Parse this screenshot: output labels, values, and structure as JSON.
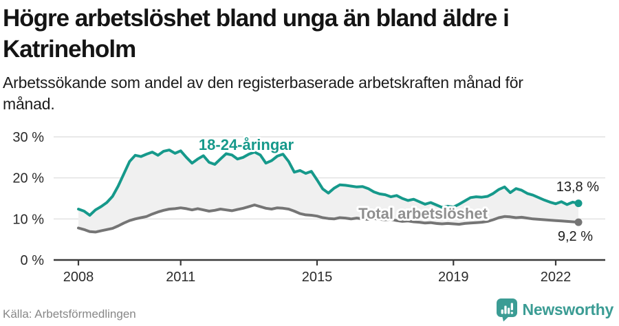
{
  "header": {
    "title": "Högre arbetslöshet bland unga än bland äldre i Katrineholm",
    "title_lines": [
      "Högre arbetslöshet bland unga än bland äldre i",
      "Katrineholm"
    ],
    "subtitle": "Arbetssökande som andel av den registerbaserade arbetskraften månad för månad.",
    "subtitle_lines": [
      "Arbetssökande som andel av den registerbaserade arbetskraften månad för",
      "månad."
    ]
  },
  "footer": {
    "source": "Källa: Arbetsförmedlingen",
    "brand": "Newsworthy",
    "brand_color": "#3b9c94",
    "brand_icon": "bar-chart-speech-bubble-icon"
  },
  "chart_data": {
    "type": "line",
    "title": "Högre arbetslöshet bland unga än bland äldre i Katrineholm",
    "xlabel": "",
    "ylabel": "",
    "x_start": 2008.0,
    "x_step_years": 0.16667,
    "x_unit": "year (monthly series, every 2nd month sampled)",
    "y_unit": "percent of registered labour force",
    "ylim": [
      0,
      31.5
    ],
    "xlim": [
      2007.3,
      2023.2
    ],
    "grid": "horizontal",
    "area_fill_between_series": "#f0f0f0",
    "background": "#ffffff",
    "x_ticks": [
      {
        "value": 2008,
        "label": "2008"
      },
      {
        "value": 2011,
        "label": "2011"
      },
      {
        "value": 2015,
        "label": "2015"
      },
      {
        "value": 2019,
        "label": "2019"
      },
      {
        "value": 2022,
        "label": "2022"
      }
    ],
    "y_ticks": [
      {
        "value": 0,
        "label": "0 %"
      },
      {
        "value": 10,
        "label": "10 %"
      },
      {
        "value": 20,
        "label": "20 %"
      },
      {
        "value": 30,
        "label": "30 %"
      }
    ],
    "series": [
      {
        "name": "18-24-åringar",
        "color": "#16998b",
        "label_color": "#16998b",
        "end_label": "13,8 %",
        "end_value": 13.8,
        "values": [
          12.4,
          11.9,
          10.9,
          12.2,
          13.0,
          14.0,
          15.5,
          18.0,
          21.0,
          24.0,
          25.5,
          25.2,
          25.8,
          26.3,
          25.5,
          26.5,
          26.8,
          26.0,
          26.6,
          25.0,
          23.6,
          24.6,
          25.4,
          23.8,
          23.3,
          24.6,
          25.9,
          25.6,
          24.6,
          25.0,
          25.8,
          26.3,
          25.6,
          23.6,
          24.2,
          25.3,
          25.8,
          24.0,
          21.4,
          21.8,
          21.1,
          21.6,
          19.5,
          17.3,
          16.3,
          17.5,
          18.3,
          18.2,
          18.0,
          17.8,
          17.9,
          17.4,
          16.6,
          16.1,
          15.9,
          15.4,
          15.7,
          15.0,
          14.5,
          14.8,
          14.2,
          13.6,
          14.0,
          13.4,
          12.8,
          13.1,
          12.9,
          13.6,
          14.4,
          15.2,
          15.4,
          15.3,
          15.5,
          16.2,
          17.2,
          17.8,
          16.4,
          17.4,
          17.0,
          16.2,
          15.8,
          15.2,
          14.6,
          14.1,
          13.7,
          14.2,
          13.5,
          14.1,
          13.8
        ]
      },
      {
        "name": "Total arbetslöshet",
        "color": "#757575",
        "label_color": "#8f8f8f",
        "end_label": "9,2 %",
        "end_value": 9.2,
        "values": [
          7.8,
          7.4,
          6.9,
          6.8,
          7.1,
          7.4,
          7.7,
          8.3,
          9.0,
          9.6,
          10.0,
          10.3,
          10.6,
          11.2,
          11.7,
          12.1,
          12.4,
          12.5,
          12.7,
          12.5,
          12.2,
          12.5,
          12.2,
          11.9,
          12.1,
          12.4,
          12.2,
          12.0,
          12.3,
          12.6,
          13.0,
          13.4,
          13.0,
          12.6,
          12.4,
          12.7,
          12.6,
          12.4,
          11.9,
          11.3,
          11.0,
          10.9,
          10.7,
          10.3,
          10.1,
          10.0,
          10.3,
          10.2,
          10.0,
          10.2,
          10.0,
          9.9,
          10.1,
          9.9,
          9.8,
          9.9,
          9.6,
          9.4,
          9.5,
          9.3,
          9.2,
          9.0,
          9.1,
          8.9,
          8.8,
          8.9,
          8.8,
          8.7,
          8.9,
          9.0,
          9.1,
          9.2,
          9.4,
          9.8,
          10.3,
          10.6,
          10.5,
          10.3,
          10.4,
          10.2,
          10.0,
          9.9,
          9.8,
          9.7,
          9.6,
          9.5,
          9.4,
          9.3,
          9.2
        ]
      }
    ],
    "legend_position": "inline-labels-on-chart"
  }
}
